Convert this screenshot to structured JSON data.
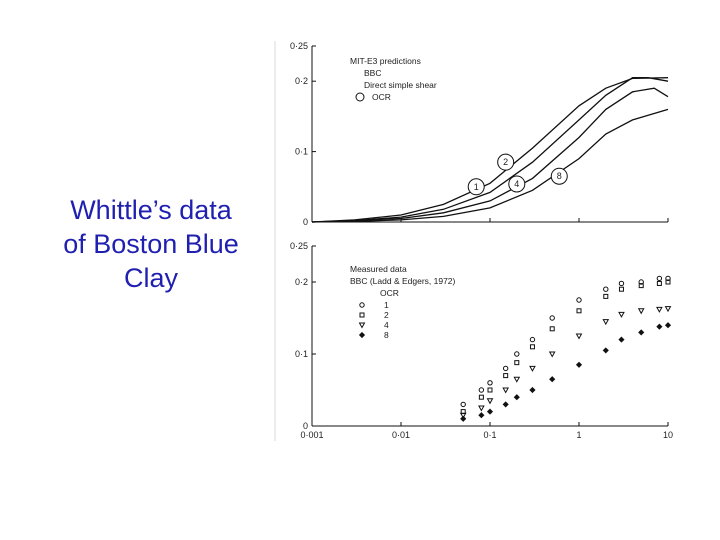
{
  "slide": {
    "title_lines": [
      "Whittle’s data",
      "of Boston Blue",
      "Clay"
    ],
    "title_color": "#1f1fb0"
  },
  "chart_data": [
    {
      "type": "line",
      "title": "",
      "xlabel": "",
      "ylabel": "",
      "x_scale": "log",
      "xlim": [
        0.001,
        10
      ],
      "ylim": [
        0,
        0.25
      ],
      "y_ticks": [
        "0·25",
        "0·2",
        "0·1",
        "0"
      ],
      "legend": {
        "lines": [
          "MIT-E3 predictions",
          "BBC",
          "Direct simple shear"
        ],
        "symbol_label": "OCR"
      },
      "series": [
        {
          "name": "1",
          "x": [
            0.001,
            0.003,
            0.01,
            0.03,
            0.1,
            0.3,
            1,
            2,
            4,
            10
          ],
          "y": [
            0.0,
            0.003,
            0.01,
            0.025,
            0.055,
            0.105,
            0.165,
            0.19,
            0.204,
            0.205
          ]
        },
        {
          "name": "2",
          "x": [
            0.001,
            0.003,
            0.01,
            0.03,
            0.1,
            0.3,
            1,
            2,
            4,
            6,
            10
          ],
          "y": [
            0.0,
            0.002,
            0.007,
            0.018,
            0.042,
            0.085,
            0.145,
            0.18,
            0.205,
            0.205,
            0.2
          ]
        },
        {
          "name": "4",
          "x": [
            0.001,
            0.003,
            0.01,
            0.03,
            0.1,
            0.3,
            1,
            2,
            4,
            7,
            10
          ],
          "y": [
            0.0,
            0.002,
            0.005,
            0.013,
            0.03,
            0.062,
            0.12,
            0.16,
            0.185,
            0.19,
            0.178
          ]
        },
        {
          "name": "8",
          "x": [
            0.001,
            0.003,
            0.01,
            0.03,
            0.1,
            0.3,
            1,
            2,
            4,
            10
          ],
          "y": [
            0.0,
            0.001,
            0.003,
            0.008,
            0.02,
            0.045,
            0.09,
            0.125,
            0.145,
            0.16
          ]
        }
      ]
    },
    {
      "type": "scatter",
      "title": "",
      "xlabel": "",
      "ylabel": "",
      "x_scale": "log",
      "xlim": [
        0.001,
        10
      ],
      "ylim": [
        0,
        0.25
      ],
      "x_ticks": [
        "0·001",
        "0·01",
        "0·1",
        "1",
        "10"
      ],
      "y_ticks": [
        "0·25",
        "0·2",
        "0·1",
        "0"
      ],
      "legend": {
        "lines": [
          "Measured data",
          "BBC (Ladd & Edgers, 1972)"
        ],
        "symbol_label": "OCR"
      },
      "series": [
        {
          "name": "1",
          "x": [
            0.05,
            0.08,
            0.1,
            0.15,
            0.2,
            0.3,
            0.5,
            1,
            2,
            3,
            5,
            8,
            10
          ],
          "y": [
            0.03,
            0.05,
            0.06,
            0.08,
            0.1,
            0.12,
            0.15,
            0.175,
            0.19,
            0.198,
            0.2,
            0.205,
            0.205
          ]
        },
        {
          "name": "2",
          "x": [
            0.05,
            0.08,
            0.1,
            0.15,
            0.2,
            0.3,
            0.5,
            1,
            2,
            3,
            5,
            8,
            10
          ],
          "y": [
            0.02,
            0.04,
            0.05,
            0.07,
            0.088,
            0.11,
            0.135,
            0.16,
            0.18,
            0.19,
            0.195,
            0.198,
            0.2
          ]
        },
        {
          "name": "4",
          "x": [
            0.05,
            0.08,
            0.1,
            0.15,
            0.2,
            0.3,
            0.5,
            1,
            2,
            3,
            5,
            8,
            10
          ],
          "y": [
            0.015,
            0.025,
            0.035,
            0.05,
            0.065,
            0.08,
            0.1,
            0.125,
            0.145,
            0.155,
            0.16,
            0.162,
            0.163
          ]
        },
        {
          "name": "8",
          "x": [
            0.05,
            0.08,
            0.1,
            0.15,
            0.2,
            0.3,
            0.5,
            1,
            2,
            3,
            5,
            8,
            10
          ],
          "y": [
            0.01,
            0.015,
            0.02,
            0.03,
            0.04,
            0.05,
            0.065,
            0.085,
            0.105,
            0.12,
            0.13,
            0.138,
            0.14
          ]
        }
      ]
    }
  ]
}
